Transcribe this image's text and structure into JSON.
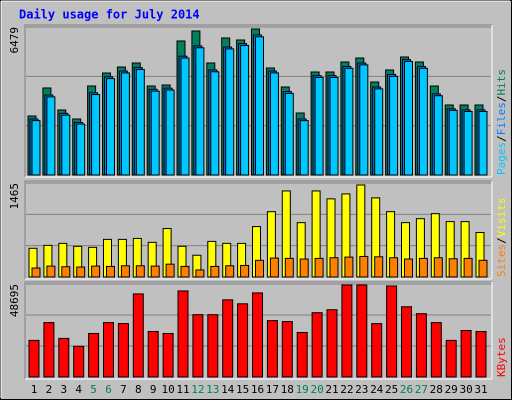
{
  "chart_data": [
    {
      "type": "bar",
      "title": "Daily usage for July 2014",
      "ylim": [
        0,
        6479
      ],
      "yticks": [
        6479
      ],
      "grid": true,
      "legend_separator": "/",
      "series": [
        {
          "name": "Hits",
          "color": "#00805c",
          "values": [
            2583,
            3810,
            2846,
            2452,
            3896,
            4465,
            4728,
            4904,
            3896,
            3940,
            5867,
            6304,
            4904,
            5998,
            5911,
            6392,
            4684,
            3853,
            2714,
            4509,
            4509,
            4947,
            5122,
            4071,
            4597,
            5166,
            4947,
            3896,
            3065,
            3065,
            3065
          ]
        },
        {
          "name": "Files",
          "color": "#0080ff",
          "values": [
            2450,
            3500,
            2700,
            2300,
            3600,
            4300,
            4550,
            4700,
            3750,
            3800,
            5200,
            5650,
            4600,
            5600,
            5750,
            6130,
            4550,
            3650,
            2450,
            4350,
            4350,
            4750,
            4900,
            3850,
            4400,
            5050,
            4750,
            3550,
            2900,
            2850,
            2850
          ]
        },
        {
          "name": "Pages",
          "color": "#00c8ff",
          "values": [
            2380,
            3420,
            2620,
            2230,
            3520,
            4220,
            4470,
            4620,
            3670,
            3720,
            5120,
            5570,
            4520,
            5520,
            5670,
            6050,
            4470,
            3570,
            2380,
            4270,
            4270,
            4670,
            4820,
            3770,
            4320,
            4970,
            4670,
            3470,
            2830,
            2780,
            2780
          ]
        }
      ]
    },
    {
      "type": "bar",
      "ylim": [
        0,
        1465
      ],
      "yticks": [
        1465
      ],
      "grid": true,
      "legend_separator": "/",
      "series": [
        {
          "name": "Visits",
          "color": "#ffff00",
          "values": [
            447,
            493,
            524,
            478,
            462,
            586,
            586,
            601,
            540,
            755,
            478,
            339,
            555,
            524,
            524,
            786,
            1018,
            1341,
            847,
            1341,
            1218,
            1295,
            1434,
            1233,
            1018,
            847,
            909,
            987,
            863,
            863,
            694
          ]
        },
        {
          "name": "Sites",
          "color": "#ff8000",
          "values": [
            140,
            170,
            160,
            155,
            170,
            165,
            175,
            175,
            170,
            200,
            165,
            110,
            165,
            175,
            180,
            260,
            295,
            290,
            280,
            290,
            300,
            310,
            320,
            315,
            300,
            280,
            290,
            300,
            285,
            290,
            260
          ]
        }
      ]
    },
    {
      "type": "bar",
      "ylim": [
        0,
        48695
      ],
      "yticks": [
        48695
      ],
      "grid": true,
      "categories": [
        "1",
        "2",
        "3",
        "4",
        "5",
        "6",
        "7",
        "8",
        "9",
        "10",
        "11",
        "12",
        "13",
        "14",
        "15",
        "16",
        "17",
        "18",
        "19",
        "20",
        "21",
        "22",
        "23",
        "24",
        "25",
        "26",
        "27",
        "28",
        "29",
        "30",
        "31"
      ],
      "category_colors": [
        "#000000",
        "#000000",
        "#000000",
        "#000000",
        "#00805c",
        "#00805c",
        "#000000",
        "#000000",
        "#000000",
        "#000000",
        "#000000",
        "#00805c",
        "#00805c",
        "#000000",
        "#000000",
        "#000000",
        "#000000",
        "#000000",
        "#00805c",
        "#00805c",
        "#000000",
        "#000000",
        "#000000",
        "#000000",
        "#000000",
        "#00805c",
        "#00805c",
        "#000000",
        "#000000",
        "#000000",
        "#000000"
      ],
      "series": [
        {
          "name": "KBytes",
          "color": "#ff0000",
          "values": [
            19170,
            28500,
            20200,
            16060,
            22790,
            28500,
            27970,
            43510,
            23830,
            22790,
            45070,
            32630,
            32630,
            40400,
            38330,
            44030,
            29530,
            29010,
            23310,
            33670,
            35220,
            48170,
            48170,
            27970,
            47660,
            36780,
            33150,
            28500,
            19170,
            24350,
            23830
          ]
        }
      ]
    }
  ]
}
